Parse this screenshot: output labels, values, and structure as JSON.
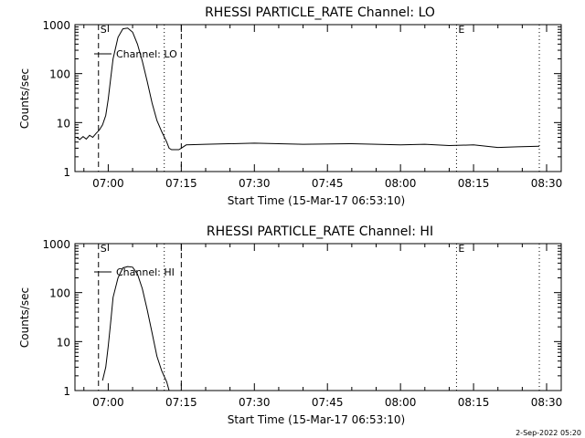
{
  "footer_timestamp": "2-Sep-2022 05:20",
  "chart_data": [
    {
      "type": "line",
      "title": "RHESSI PARTICLE_RATE Channel: LO",
      "xlabel": "Start Time (15-Mar-17 06:53:10)",
      "ylabel": "Counts/sec",
      "yscale": "log",
      "xlim": [
        "06:53:10",
        "08:33:00"
      ],
      "ylim": [
        1,
        1000
      ],
      "xticks": [
        "07:00",
        "07:15",
        "07:30",
        "07:45",
        "08:00",
        "08:15",
        "08:30"
      ],
      "yticks": [
        "1",
        "10",
        "100",
        "1000"
      ],
      "legend": "Channel: LO",
      "markers": [
        {
          "label": "S",
          "time": "06:58:00",
          "style": "dashed"
        },
        {
          "label": "",
          "time": "07:11:30",
          "style": "dotted"
        },
        {
          "label": "",
          "time": "07:15:00",
          "style": "dashed"
        },
        {
          "label": "E",
          "time": "08:11:30",
          "style": "dotted"
        },
        {
          "label": "",
          "time": "08:28:30",
          "style": "dotted"
        }
      ],
      "series": [
        {
          "x": [
            "06:53:30",
            "06:54:10",
            "06:54:50",
            "06:55:30",
            "06:56:10",
            "06:56:50",
            "06:57:30",
            "06:58:10",
            "06:58:50",
            "06:59:30",
            "07:00:00",
            "07:00:30",
            "07:01:00",
            "07:02:00",
            "07:03:00",
            "07:04:00",
            "07:05:00",
            "07:06:00",
            "07:07:00",
            "07:08:00",
            "07:09:00",
            "07:10:00",
            "07:11:00",
            "07:12:00",
            "07:12:30",
            "07:13:00",
            "07:13:45",
            "07:14:30",
            "07:15:00",
            "07:16:00",
            "07:20:00",
            "07:30:00",
            "07:40:00",
            "07:50:00",
            "08:00:00",
            "08:05:00",
            "08:10:00",
            "08:15:00",
            "08:20:00",
            "08:24:00",
            "08:28:30"
          ],
          "y": [
            5,
            4.5,
            5.2,
            4.6,
            5.5,
            5,
            6,
            7,
            9,
            14,
            30,
            80,
            200,
            550,
            820,
            850,
            700,
            400,
            180,
            70,
            25,
            11,
            6.5,
            4,
            3,
            2.8,
            2.8,
            2.8,
            3,
            3.5,
            3.6,
            3.8,
            3.6,
            3.7,
            3.5,
            3.6,
            3.4,
            3.5,
            3.1,
            3.2,
            3.3
          ]
        }
      ]
    },
    {
      "type": "line",
      "title": "RHESSI PARTICLE_RATE Channel: HI",
      "xlabel": "Start Time (15-Mar-17 06:53:10)",
      "ylabel": "Counts/sec",
      "yscale": "log",
      "xlim": [
        "06:53:10",
        "08:33:00"
      ],
      "ylim": [
        1,
        1000
      ],
      "xticks": [
        "07:00",
        "07:15",
        "07:30",
        "07:45",
        "08:00",
        "08:15",
        "08:30"
      ],
      "yticks": [
        "1",
        "10",
        "100",
        "1000"
      ],
      "legend": "Channel: HI",
      "markers": [
        {
          "label": "S",
          "time": "06:58:00",
          "style": "dashed"
        },
        {
          "label": "",
          "time": "07:11:30",
          "style": "dotted"
        },
        {
          "label": "",
          "time": "07:15:00",
          "style": "dashed"
        },
        {
          "label": "E",
          "time": "08:11:30",
          "style": "dotted"
        },
        {
          "label": "",
          "time": "08:28:30",
          "style": "dotted"
        }
      ],
      "series": [
        {
          "x": [
            "06:58:50",
            "06:59:30",
            "07:00:00",
            "07:00:30",
            "07:01:00",
            "07:02:00",
            "07:03:00",
            "07:04:00",
            "07:05:00",
            "07:06:00",
            "07:07:00",
            "07:08:00",
            "07:09:00",
            "07:10:00",
            "07:11:00",
            "07:12:00",
            "07:12:30"
          ],
          "y": [
            1.6,
            3,
            8,
            25,
            80,
            200,
            320,
            340,
            330,
            240,
            120,
            45,
            15,
            5,
            2.5,
            1.5,
            1
          ]
        }
      ]
    }
  ]
}
